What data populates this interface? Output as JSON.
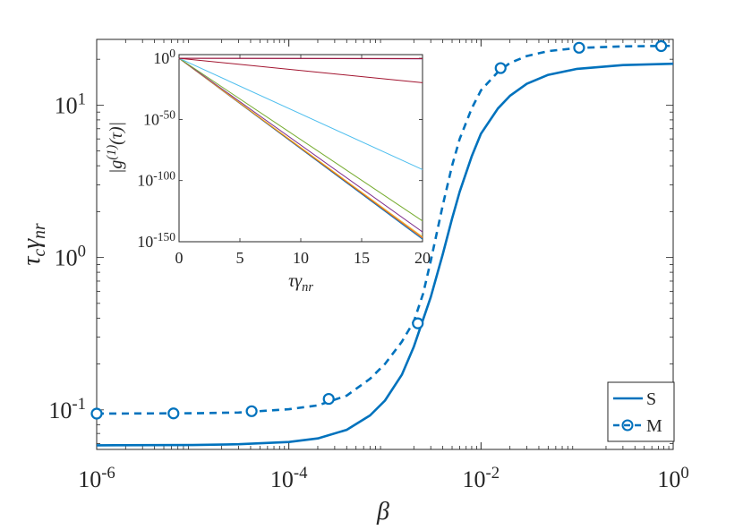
{
  "chart_data": [
    {
      "type": "line",
      "scale": {
        "x": "log",
        "y": "log"
      },
      "xlabel": "β",
      "ylabel": "τ_c γ_nr",
      "xlim": [
        1e-06,
        1
      ],
      "ylim": [
        0.055,
        27
      ],
      "grid": false,
      "legend_position": "bottom-right",
      "x_ticks": [
        {
          "value": 1e-06,
          "base": "10",
          "exp": "-6"
        },
        {
          "value": 0.0001,
          "base": "10",
          "exp": "-4"
        },
        {
          "value": 0.01,
          "base": "10",
          "exp": "-2"
        },
        {
          "value": 1,
          "base": "10",
          "exp": "0"
        }
      ],
      "y_ticks": [
        {
          "value": 0.1,
          "base": "10",
          "exp": "-1"
        },
        {
          "value": 1,
          "base": "10",
          "exp": "0"
        },
        {
          "value": 10,
          "base": "10",
          "exp": "1"
        }
      ],
      "series": [
        {
          "name": "S",
          "style": "solid",
          "color": "#0072BD",
          "points": [
            [
              1e-06,
              0.0585
            ],
            [
              1e-05,
              0.0588
            ],
            [
              3e-05,
              0.0595
            ],
            [
              0.0001,
              0.0615
            ],
            [
              0.0002,
              0.065
            ],
            [
              0.0004,
              0.074
            ],
            [
              0.0007,
              0.092
            ],
            [
              0.001,
              0.115
            ],
            [
              0.0015,
              0.17
            ],
            [
              0.002,
              0.26
            ],
            [
              0.003,
              0.55
            ],
            [
              0.004,
              1.05
            ],
            [
              0.005,
              1.8
            ],
            [
              0.006,
              2.7
            ],
            [
              0.008,
              4.6
            ],
            [
              0.01,
              6.5
            ],
            [
              0.015,
              9.5
            ],
            [
              0.02,
              11.5
            ],
            [
              0.03,
              13.8
            ],
            [
              0.05,
              15.8
            ],
            [
              0.1,
              17.3
            ],
            [
              0.3,
              18.3
            ],
            [
              1,
              18.7
            ]
          ]
        },
        {
          "name": "M",
          "style": "dashed",
          "marker": "circle",
          "color": "#0072BD",
          "points": [
            [
              1e-06,
              0.0945
            ],
            [
              1e-05,
              0.095
            ],
            [
              3e-05,
              0.096
            ],
            [
              0.0001,
              0.101
            ],
            [
              0.0002,
              0.107
            ],
            [
              0.0004,
              0.124
            ],
            [
              0.0007,
              0.16
            ],
            [
              0.001,
              0.2
            ],
            [
              0.0015,
              0.28
            ],
            [
              0.002,
              0.38
            ],
            [
              0.0025,
              0.58
            ],
            [
              0.003,
              0.95
            ],
            [
              0.004,
              2.2
            ],
            [
              0.005,
              4.0
            ],
            [
              0.006,
              6.0
            ],
            [
              0.008,
              9.5
            ],
            [
              0.01,
              12.5
            ],
            [
              0.015,
              16.5
            ],
            [
              0.02,
              18.9
            ],
            [
              0.03,
              21.0
            ],
            [
              0.05,
              22.6
            ],
            [
              0.1,
              23.7
            ],
            [
              0.3,
              24.3
            ],
            [
              1,
              24.5
            ]
          ],
          "markers": [
            [
              1e-06,
              0.0945
            ],
            [
              6.3e-06,
              0.0948
            ],
            [
              4.1e-05,
              0.098
            ],
            [
              0.00026,
              0.118
            ],
            [
              0.0022,
              0.37
            ],
            [
              0.016,
              17.5
            ],
            [
              0.105,
              23.8
            ],
            [
              0.75,
              24.4
            ]
          ]
        }
      ]
    },
    {
      "type": "line",
      "inset": true,
      "scale": {
        "x": "linear",
        "y": "log"
      },
      "xlabel": "τγ_nr",
      "ylabel": "|g(1)(τ)|",
      "xlim": [
        0,
        20
      ],
      "ylim_exp": [
        -150,
        3
      ],
      "x_ticks": [
        0,
        5,
        10,
        15,
        20
      ],
      "y_ticks": [
        {
          "exp": "0",
          "label": "10",
          "exp_label": "0"
        },
        {
          "exp": "-50",
          "label": "10",
          "exp_label": "-50"
        },
        {
          "exp": "-100",
          "label": "10",
          "exp_label": "-100"
        },
        {
          "exp": "-150",
          "label": "10",
          "exp_label": "-150"
        }
      ],
      "series": [
        {
          "color": "#0072BD",
          "end_exp": -148
        },
        {
          "color": "#D95319",
          "end_exp": -147
        },
        {
          "color": "#EDB120",
          "end_exp": -146
        },
        {
          "color": "#7E2F8E",
          "end_exp": -142
        },
        {
          "color": "#77AC30",
          "end_exp": -133
        },
        {
          "color": "#4DBEEE",
          "end_exp": -91
        },
        {
          "color": "#A2142F",
          "end_exp": -20
        },
        {
          "color": "#7E2F8E",
          "end_exp": -0.5
        },
        {
          "color": "#A2142F",
          "end_exp": -0.2
        }
      ]
    }
  ],
  "legend": {
    "items": [
      {
        "label": "S",
        "style": "solid"
      },
      {
        "label": "M",
        "style": "dashed-marker"
      }
    ]
  }
}
